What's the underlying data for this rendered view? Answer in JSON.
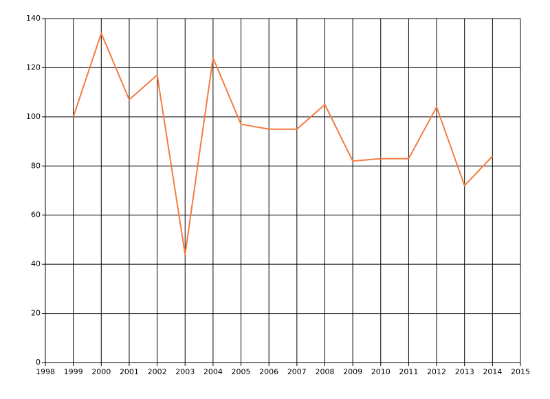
{
  "chart_data": {
    "type": "line",
    "x": [
      1999,
      2000,
      2001,
      2002,
      2003,
      2004,
      2005,
      2006,
      2007,
      2008,
      2009,
      2010,
      2011,
      2012,
      2013,
      2014
    ],
    "series": [
      {
        "color": "#f47b3f",
        "values": [
          100,
          134,
          107,
          117,
          44,
          124,
          97,
          95,
          95,
          105,
          82,
          83,
          83,
          104,
          72,
          84
        ]
      }
    ],
    "xlim": [
      1998,
      2015
    ],
    "xticks": [
      1998,
      1999,
      2000,
      2001,
      2002,
      2003,
      2004,
      2005,
      2006,
      2007,
      2008,
      2009,
      2010,
      2011,
      2012,
      2013,
      2014,
      2015
    ],
    "ylim": [
      0,
      140
    ],
    "yticks": [
      0,
      20,
      40,
      60,
      80,
      100,
      120,
      140
    ],
    "grid": true
  }
}
